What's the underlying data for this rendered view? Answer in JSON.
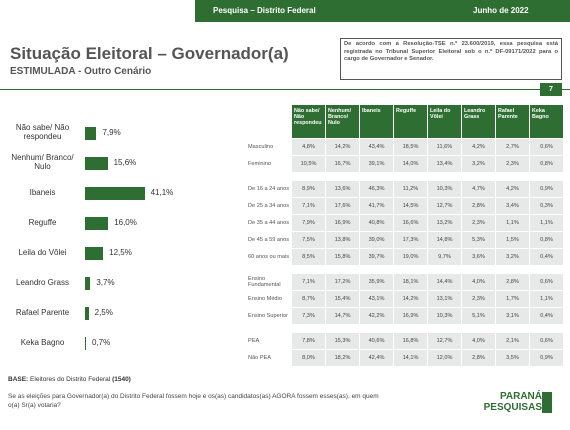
{
  "header": {
    "left": "Pesquisa – Distrito Federal",
    "right": "Junho de 2022"
  },
  "title": "Situação Eleitoral – Governador(a)",
  "subtitle": "ESTIMULADA - Outro Cenário",
  "note": "De acordo com a Resolução-TSE n.º 23.600/2019, essa pesquisa está registrada no Tribunal Superior Eleitoral sob o n.º DF-09171/2022 para o cargo de Governador e Senador.",
  "page_number": "7",
  "chart_data": {
    "type": "bar",
    "color": "#2f6e33",
    "categories": [
      "Não sabe/ Não respondeu",
      "Nenhum/ Branco/ Nulo",
      "Ibaneis",
      "Reguffe",
      "Leila do Vôlei",
      "Leandro Grass",
      "Rafael Parente",
      "Keka Bagno"
    ],
    "values": [
      7.9,
      15.6,
      41.1,
      16.0,
      12.5,
      3.7,
      2.5,
      0.7
    ],
    "value_labels": [
      "7,9%",
      "15,6%",
      "41,1%",
      "16,0%",
      "12,5%",
      "3,7%",
      "2,5%",
      "0,7%"
    ]
  },
  "table": {
    "columns": [
      "Não sabe/ Não respondeu",
      "Nenhum/ Branco/ Nulo",
      "Ibaneis",
      "Reguffe",
      "Leila do Vôlei",
      "Leandro Grass",
      "Rafael Parente",
      "Keka Bagno"
    ],
    "groups": [
      [
        [
          "Masculino",
          "4,8%",
          "14,2%",
          "43,4%",
          "18,5%",
          "11,6%",
          "4,2%",
          "2,7%",
          "0,6%"
        ],
        [
          "Feminino",
          "10,5%",
          "16,7%",
          "39,1%",
          "14,0%",
          "13,4%",
          "3,2%",
          "2,3%",
          "0,8%"
        ]
      ],
      [
        [
          "De 16 a 24 anos",
          "8,9%",
          "13,6%",
          "46,3%",
          "11,2%",
          "10,3%",
          "4,7%",
          "4,2%",
          "0,9%"
        ],
        [
          "De 25 a 34 anos",
          "7,1%",
          "17,6%",
          "41,7%",
          "14,5%",
          "12,7%",
          "2,8%",
          "3,4%",
          "0,3%"
        ],
        [
          "De 35 a 44 anos",
          "7,9%",
          "16,9%",
          "40,8%",
          "16,6%",
          "13,2%",
          "2,3%",
          "1,1%",
          "1,1%"
        ],
        [
          "De 45 a 59 anos",
          "7,5%",
          "13,8%",
          "39,0%",
          "17,3%",
          "14,8%",
          "5,3%",
          "1,5%",
          "0,8%"
        ],
        [
          "60 anos ou mais",
          "8,5%",
          "15,8%",
          "39,7%",
          "19,0%",
          "9,7%",
          "3,6%",
          "3,2%",
          "0,4%"
        ]
      ],
      [
        [
          "Ensino Fundamental",
          "7,1%",
          "17,2%",
          "35,9%",
          "18,1%",
          "14,4%",
          "4,0%",
          "2,8%",
          "0,6%"
        ],
        [
          "Ensino Médio",
          "8,7%",
          "15,4%",
          "43,1%",
          "14,2%",
          "13,1%",
          "2,3%",
          "1,7%",
          "1,1%"
        ],
        [
          "Ensino Superior",
          "7,3%",
          "14,7%",
          "42,2%",
          "16,9%",
          "10,3%",
          "5,1%",
          "3,1%",
          "0,4%"
        ]
      ],
      [
        [
          "PEA",
          "7,8%",
          "15,3%",
          "40,6%",
          "16,8%",
          "12,7%",
          "4,0%",
          "2,1%",
          "0,6%"
        ],
        [
          "Não PEA",
          "8,0%",
          "18,2%",
          "42,4%",
          "14,1%",
          "12,0%",
          "2,8%",
          "3,5%",
          "0,9%"
        ]
      ]
    ]
  },
  "base": {
    "label": "BASE:",
    "text": "Eleitores do Distrito Federal",
    "count": "(1540)"
  },
  "question": "Se as eleições para Governador(a) do Distrito Federal fossem hoje e os(as) candidatos(as) AGORA fossem esses(as), em quem o(a) Sr(a) votaria?",
  "logo": {
    "line1": "PARANÁ",
    "line2": "PESQUISAS"
  }
}
